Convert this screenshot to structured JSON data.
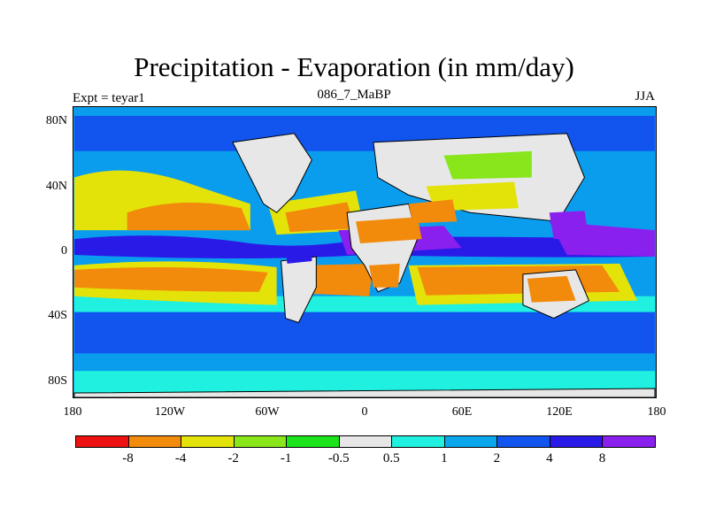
{
  "title": "Precipitation - Evaporation (in mm/day)",
  "subtitle_left": "Expt = teyar1",
  "subtitle_center": "086_7_MaBP",
  "subtitle_right": "JJA",
  "axes": {
    "y_ticks": [
      {
        "label": "80N",
        "lat": 80
      },
      {
        "label": "40N",
        "lat": 40
      },
      {
        "label": "0",
        "lat": 0
      },
      {
        "label": "40S",
        "lat": -40
      },
      {
        "label": "80S",
        "lat": -80
      }
    ],
    "x_ticks": [
      {
        "label": "180",
        "lon": -180
      },
      {
        "label": "120W",
        "lon": -120
      },
      {
        "label": "60W",
        "lon": -60
      },
      {
        "label": "0",
        "lon": 0
      },
      {
        "label": "60E",
        "lon": 60
      },
      {
        "label": "120E",
        "lon": 120
      },
      {
        "label": "180",
        "lon": 180
      }
    ],
    "lon_range": [
      -180,
      180
    ],
    "lat_range": [
      -90,
      90
    ]
  },
  "colorbar": {
    "colors": [
      "#ee1111",
      "#f28b0b",
      "#e3e30a",
      "#88e61b",
      "#1ce41c",
      "#e7e7e7",
      "#1ff0e0",
      "#0aa6ee",
      "#1155ee",
      "#2a1ae8",
      "#8a20ee"
    ],
    "labels": [
      "-8",
      "-4",
      "-2",
      "-1",
      "-0.5",
      "0.5",
      "1",
      "2",
      "4",
      "8"
    ]
  },
  "colors": {
    "ocean_base": "#0a9dee",
    "land_outline": "#000000"
  }
}
